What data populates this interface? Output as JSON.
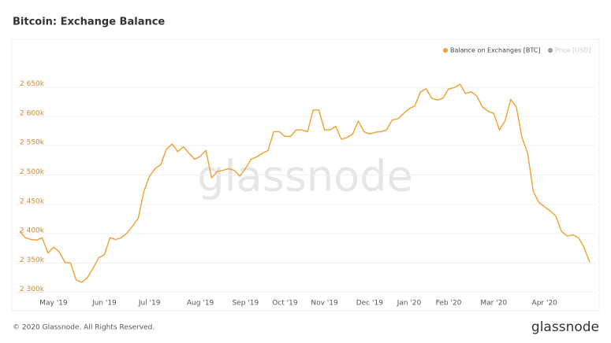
{
  "chart_data": {
    "type": "line",
    "title": "Bitcoin: Exchange Balance",
    "watermark": "glassnode",
    "footer": "© 2020 Glassnode. All Rights Reserved.",
    "logo": "glassnode",
    "categories": [
      null,
      null,
      null,
      null,
      null,
      null,
      "May '19",
      null,
      null,
      null,
      null,
      null,
      null,
      null,
      null,
      "Jun '19",
      null,
      null,
      null,
      null,
      null,
      null,
      null,
      "Jul '19",
      null,
      null,
      null,
      null,
      null,
      null,
      null,
      null,
      "Aug '19",
      null,
      null,
      null,
      null,
      null,
      null,
      null,
      "Sep '19",
      null,
      null,
      null,
      null,
      null,
      null,
      "Oct '19",
      null,
      null,
      null,
      null,
      null,
      null,
      "Nov '19",
      null,
      null,
      null,
      null,
      null,
      null,
      null,
      "Dec '19",
      null,
      null,
      null,
      null,
      null,
      null,
      "Jan '20",
      null,
      null,
      null,
      null,
      null,
      null,
      "Feb '20",
      null,
      null,
      null,
      null,
      null,
      null,
      null,
      "Mar '20",
      null,
      null,
      null,
      null,
      null,
      null,
      null,
      null,
      "Apr '20",
      null,
      null,
      null,
      null,
      null,
      null,
      null,
      null
    ],
    "series": [
      {
        "name": "Balance on Exchanges [BTC]",
        "color": "#f0a030",
        "values": [
          2404000,
          2393000,
          2390000,
          2389000,
          2393000,
          2367000,
          2377000,
          2369000,
          2351000,
          2350000,
          2321000,
          2317000,
          2325000,
          2341000,
          2359000,
          2364000,
          2393000,
          2390000,
          2393000,
          2401000,
          2413000,
          2426000,
          2472000,
          2498000,
          2511000,
          2518000,
          2544000,
          2553000,
          2540000,
          2548000,
          2537000,
          2527000,
          2532000,
          2542000,
          2495000,
          2506000,
          2508000,
          2511000,
          2508000,
          2498000,
          2511000,
          2527000,
          2531000,
          2537000,
          2542000,
          2574000,
          2574000,
          2566000,
          2566000,
          2577000,
          2577000,
          2574000,
          2611000,
          2611000,
          2577000,
          2577000,
          2583000,
          2561000,
          2564000,
          2570000,
          2592000,
          2574000,
          2570000,
          2573000,
          2574000,
          2577000,
          2594000,
          2596000,
          2605000,
          2613000,
          2618000,
          2642000,
          2647000,
          2631000,
          2628000,
          2631000,
          2647000,
          2649000,
          2655000,
          2639000,
          2642000,
          2635000,
          2616000,
          2609000,
          2605000,
          2577000,
          2592000,
          2629000,
          2616000,
          2564000,
          2537000,
          2472000,
          2453000,
          2446000,
          2439000,
          2430000,
          2404000,
          2396000,
          2398000,
          2393000,
          2377000,
          2351000
        ]
      }
    ],
    "inactive_legend": {
      "name": "Price [USD]",
      "color": "#999999"
    },
    "ylim": [
      2290000,
      2710000
    ],
    "yticks": [
      {
        "value": 2300000,
        "label": "2 300k"
      },
      {
        "value": 2350000,
        "label": "2 350k"
      },
      {
        "value": 2400000,
        "label": "2 400k"
      },
      {
        "value": 2450000,
        "label": "2 450k"
      },
      {
        "value": 2500000,
        "label": "2 500k"
      },
      {
        "value": 2550000,
        "label": "2 550k"
      },
      {
        "value": 2600000,
        "label": "2 600k"
      },
      {
        "value": 2650000,
        "label": "2 650k"
      }
    ],
    "grid": true,
    "legend": "top-right"
  }
}
